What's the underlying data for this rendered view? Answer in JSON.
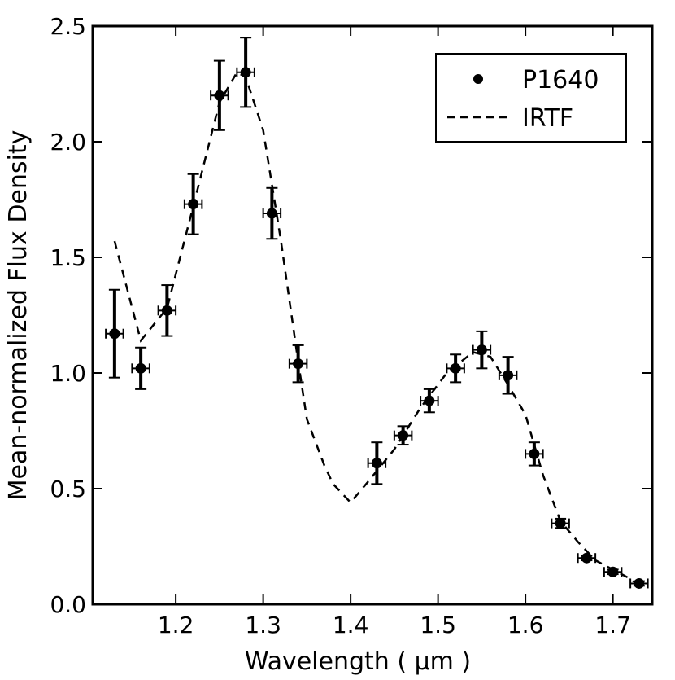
{
  "chart_data": {
    "type": "scatter",
    "xlabel": "Wavelength ( μm )",
    "ylabel": "Mean-normalized Flux Density",
    "xlim": [
      1.105,
      1.745
    ],
    "ylim": [
      0.0,
      2.5
    ],
    "x_ticks": [
      1.2,
      1.3,
      1.4,
      1.5,
      1.6,
      1.7
    ],
    "x_tick_labels": [
      "1.2",
      "1.3",
      "1.4",
      "1.5",
      "1.6",
      "1.7"
    ],
    "y_ticks": [
      0.0,
      0.5,
      1.0,
      1.5,
      2.0,
      2.5
    ],
    "y_tick_labels": [
      "0.0",
      "0.5",
      "1.0",
      "1.5",
      "2.0",
      "2.5"
    ],
    "legend_position": "top-right",
    "grid": false,
    "series": [
      {
        "name": "P1640",
        "style": "points-with-errorbars",
        "color": "#000000",
        "points": [
          {
            "x": 1.13,
            "y": 1.17,
            "yerr": 0.19,
            "xerr": 0.01
          },
          {
            "x": 1.16,
            "y": 1.02,
            "yerr": 0.09,
            "xerr": 0.01
          },
          {
            "x": 1.19,
            "y": 1.27,
            "yerr": 0.11,
            "xerr": 0.01
          },
          {
            "x": 1.22,
            "y": 1.73,
            "yerr": 0.13,
            "xerr": 0.01
          },
          {
            "x": 1.25,
            "y": 2.2,
            "yerr": 0.15,
            "xerr": 0.01
          },
          {
            "x": 1.28,
            "y": 2.3,
            "yerr": 0.15,
            "xerr": 0.01
          },
          {
            "x": 1.31,
            "y": 1.69,
            "yerr": 0.11,
            "xerr": 0.01
          },
          {
            "x": 1.34,
            "y": 1.04,
            "yerr": 0.08,
            "xerr": 0.01
          },
          {
            "x": 1.43,
            "y": 0.61,
            "yerr": 0.09,
            "xerr": 0.01
          },
          {
            "x": 1.46,
            "y": 0.73,
            "yerr": 0.04,
            "xerr": 0.01
          },
          {
            "x": 1.49,
            "y": 0.88,
            "yerr": 0.05,
            "xerr": 0.01
          },
          {
            "x": 1.52,
            "y": 1.02,
            "yerr": 0.06,
            "xerr": 0.01
          },
          {
            "x": 1.55,
            "y": 1.1,
            "yerr": 0.08,
            "xerr": 0.01
          },
          {
            "x": 1.58,
            "y": 0.99,
            "yerr": 0.08,
            "xerr": 0.01
          },
          {
            "x": 1.61,
            "y": 0.65,
            "yerr": 0.05,
            "xerr": 0.01
          },
          {
            "x": 1.64,
            "y": 0.35,
            "yerr": 0.02,
            "xerr": 0.01
          },
          {
            "x": 1.67,
            "y": 0.2,
            "yerr": 0.01,
            "xerr": 0.01
          },
          {
            "x": 1.7,
            "y": 0.14,
            "yerr": 0.01,
            "xerr": 0.01
          },
          {
            "x": 1.73,
            "y": 0.09,
            "yerr": 0.01,
            "xerr": 0.01
          }
        ]
      },
      {
        "name": "IRTF",
        "style": "dashed-line",
        "color": "#000000",
        "x": [
          1.13,
          1.16,
          1.19,
          1.22,
          1.25,
          1.27,
          1.28,
          1.3,
          1.32,
          1.34,
          1.35,
          1.37,
          1.38,
          1.4,
          1.42,
          1.45,
          1.48,
          1.51,
          1.54,
          1.56,
          1.58,
          1.6,
          1.62,
          1.64,
          1.66,
          1.68,
          1.7,
          1.72,
          1.73
        ],
        "y": [
          1.57,
          1.14,
          1.28,
          1.72,
          2.17,
          2.3,
          2.28,
          2.05,
          1.58,
          1.05,
          0.8,
          0.6,
          0.52,
          0.44,
          0.53,
          0.67,
          0.85,
          1.0,
          1.09,
          1.07,
          0.95,
          0.82,
          0.56,
          0.36,
          0.27,
          0.19,
          0.15,
          0.11,
          0.08
        ]
      }
    ]
  }
}
